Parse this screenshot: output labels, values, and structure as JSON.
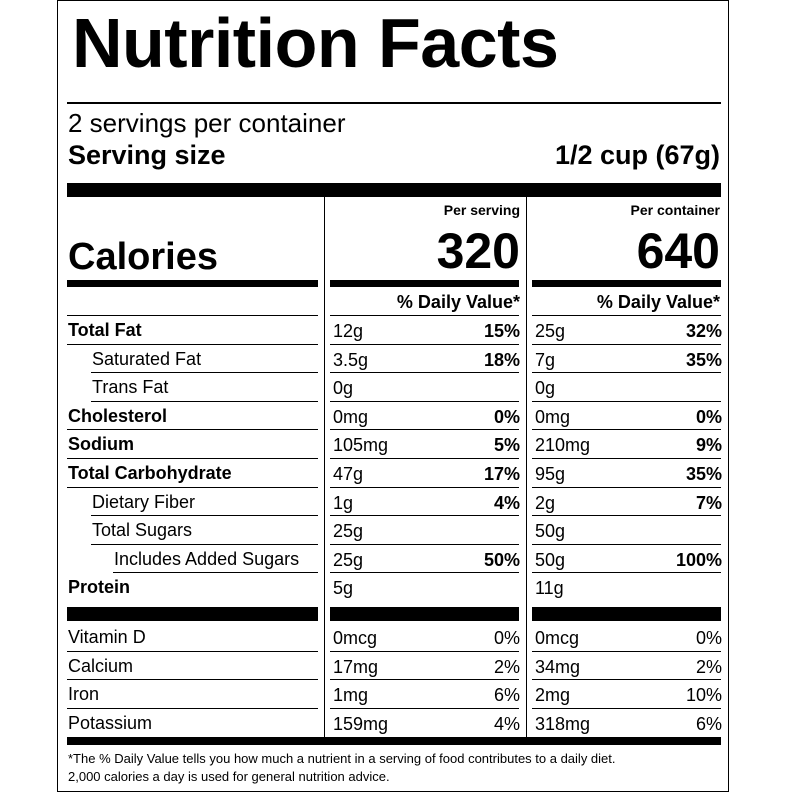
{
  "title": "Nutrition Facts",
  "servings_per_container": "2 servings per container",
  "serving_size_label": "Serving size",
  "serving_size_value": "1/2 cup (67g)",
  "calories_label": "Calories",
  "columns": [
    {
      "heading": "Per serving",
      "calories": "320",
      "dv_heading": "% Daily Value*"
    },
    {
      "heading": "Per container",
      "calories": "640",
      "dv_heading": "% Daily Value*"
    }
  ],
  "nutrients": [
    {
      "label": "Total Fat",
      "values": [
        {
          "amount": "12g",
          "dv": "15%"
        },
        {
          "amount": "25g",
          "dv": "32%"
        }
      ]
    },
    {
      "label": "Saturated Fat",
      "values": [
        {
          "amount": "3.5g",
          "dv": "18%"
        },
        {
          "amount": "7g",
          "dv": "35%"
        }
      ]
    },
    {
      "label": "Trans Fat",
      "values": [
        {
          "amount": "0g",
          "dv": ""
        },
        {
          "amount": "0g",
          "dv": ""
        }
      ]
    },
    {
      "label": "Cholesterol",
      "values": [
        {
          "amount": "0mg",
          "dv": "0%"
        },
        {
          "amount": "0mg",
          "dv": "0%"
        }
      ]
    },
    {
      "label": "Sodium",
      "values": [
        {
          "amount": "105mg",
          "dv": "5%"
        },
        {
          "amount": "210mg",
          "dv": "9%"
        }
      ]
    },
    {
      "label": "Total Carbohydrate",
      "values": [
        {
          "amount": "47g",
          "dv": "17%"
        },
        {
          "amount": "95g",
          "dv": "35%"
        }
      ]
    },
    {
      "label": "Dietary Fiber",
      "values": [
        {
          "amount": "1g",
          "dv": "4%"
        },
        {
          "amount": "2g",
          "dv": "7%"
        }
      ]
    },
    {
      "label": "Total Sugars",
      "values": [
        {
          "amount": "25g",
          "dv": ""
        },
        {
          "amount": "50g",
          "dv": ""
        }
      ]
    },
    {
      "label": "Includes Added Sugars",
      "values": [
        {
          "amount": "25g",
          "dv": "50%"
        },
        {
          "amount": "50g",
          "dv": "100%"
        }
      ]
    },
    {
      "label": "Protein",
      "values": [
        {
          "amount": "5g",
          "dv": ""
        },
        {
          "amount": "11g",
          "dv": ""
        }
      ]
    }
  ],
  "minerals": [
    {
      "label": "Vitamin D",
      "values": [
        {
          "amount": "0mcg",
          "dv": "0%"
        },
        {
          "amount": "0mcg",
          "dv": "0%"
        }
      ]
    },
    {
      "label": "Calcium",
      "values": [
        {
          "amount": "17mg",
          "dv": "2%"
        },
        {
          "amount": "34mg",
          "dv": "2%"
        }
      ]
    },
    {
      "label": "Iron",
      "values": [
        {
          "amount": "1mg",
          "dv": "6%"
        },
        {
          "amount": "2mg",
          "dv": "10%"
        }
      ]
    },
    {
      "label": "Potassium",
      "values": [
        {
          "amount": "159mg",
          "dv": "4%"
        },
        {
          "amount": "318mg",
          "dv": "6%"
        }
      ]
    }
  ],
  "footnote": [
    "*The % Daily Value tells you how much a nutrient in a serving of food contributes to a daily diet.",
    "2,000 calories a day is used for general nutrition advice."
  ]
}
